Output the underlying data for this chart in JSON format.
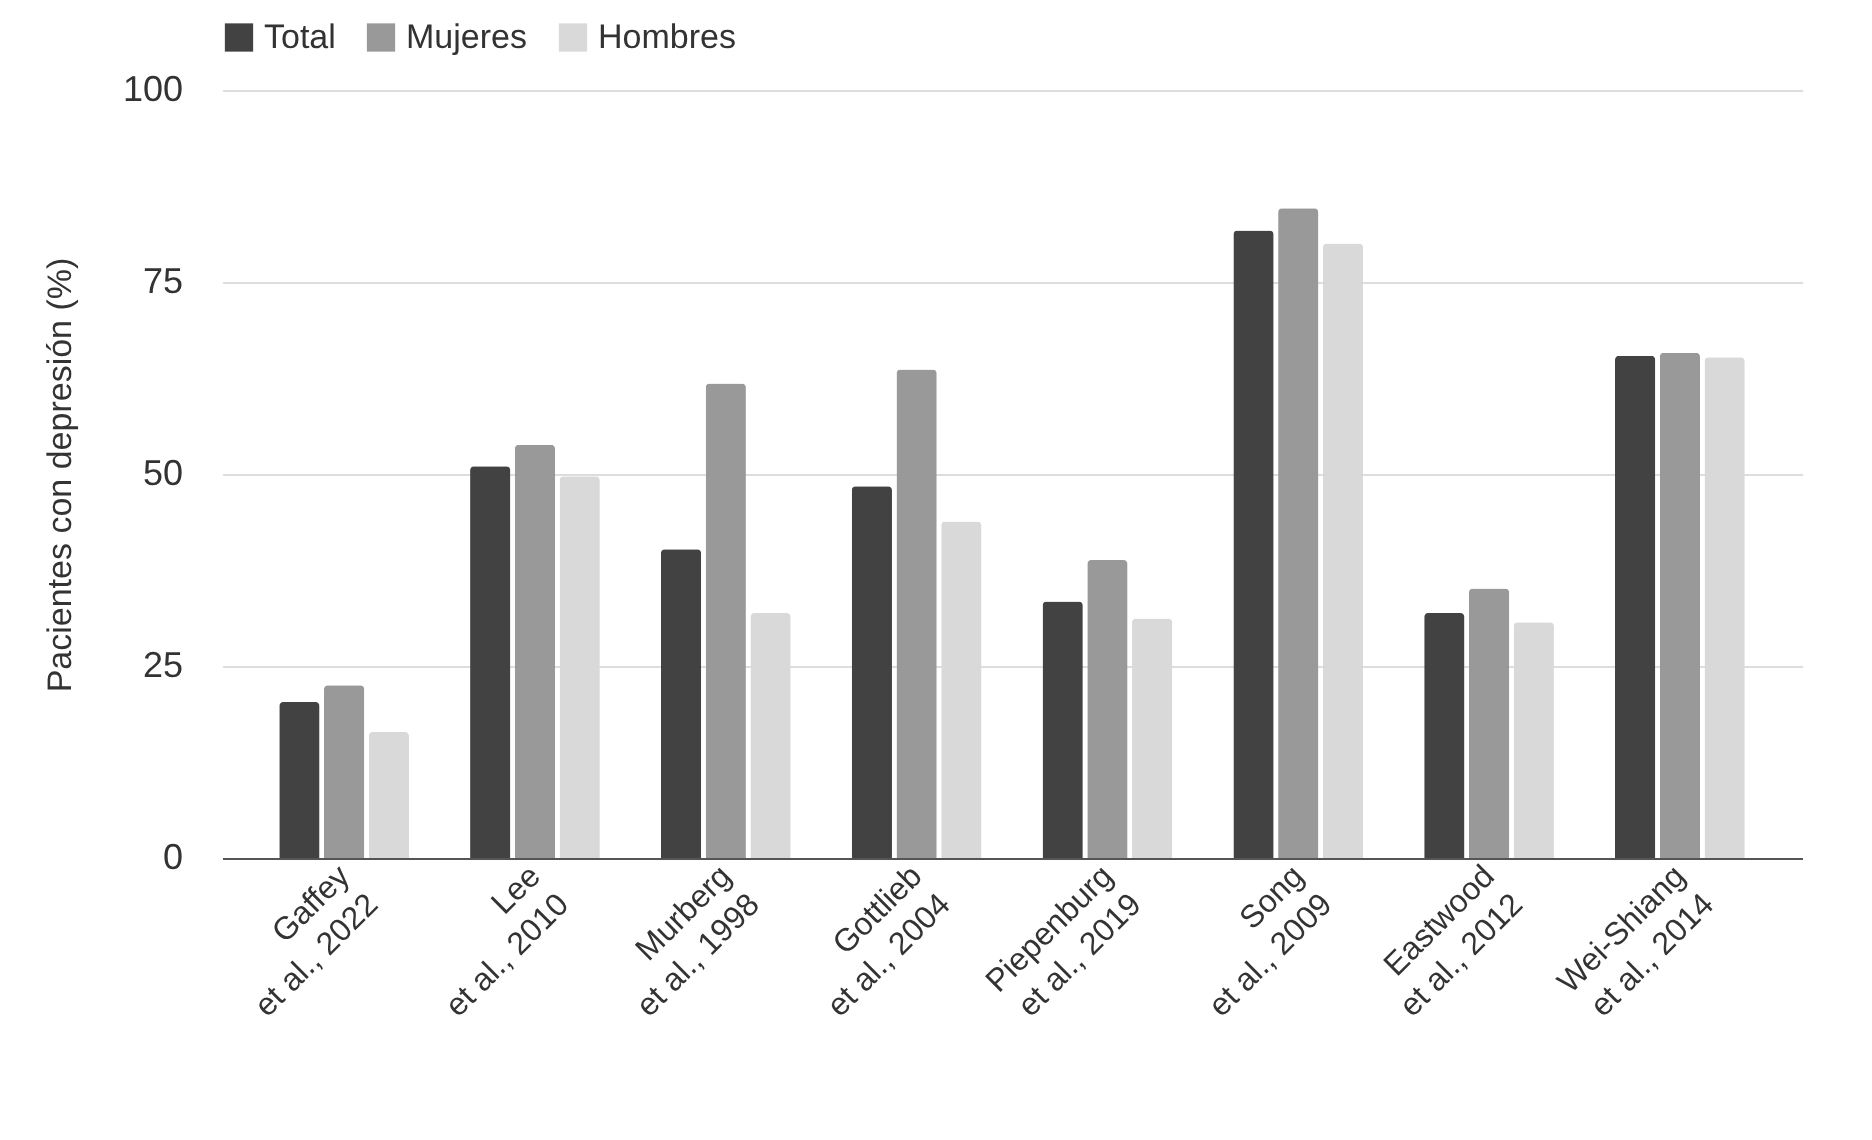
{
  "chart_data": {
    "type": "bar",
    "ylabel": "Pacientes con depresión (%)",
    "categories": [
      "Gaffey\net al., 2022",
      "Lee\net al., 2010",
      "Murberg\net al., 1998",
      "Gottlieb\net al., 2004",
      "Piepenburg\net al., 2019",
      "Song\net al., 2009",
      "Eastwood\net al., 2012",
      "Wei-Shiang\net al., 2014"
    ],
    "series": [
      {
        "name": "Total",
        "color": "#424242",
        "values": [
          20.3,
          51.0,
          40.2,
          48.4,
          33.4,
          81.7,
          31.9,
          65.4
        ]
      },
      {
        "name": "Mujeres",
        "color": "#999999",
        "values": [
          22.5,
          53.8,
          61.8,
          63.6,
          38.8,
          84.6,
          35.1,
          65.8
        ]
      },
      {
        "name": "Hombres",
        "color": "#d9d9d9",
        "values": [
          16.4,
          49.7,
          31.9,
          43.8,
          31.2,
          80.0,
          30.7,
          65.2
        ]
      }
    ],
    "ylim": [
      0,
      100
    ],
    "yticks": [
      0,
      25,
      50,
      75,
      100
    ],
    "grid": "y",
    "legend": "top"
  }
}
